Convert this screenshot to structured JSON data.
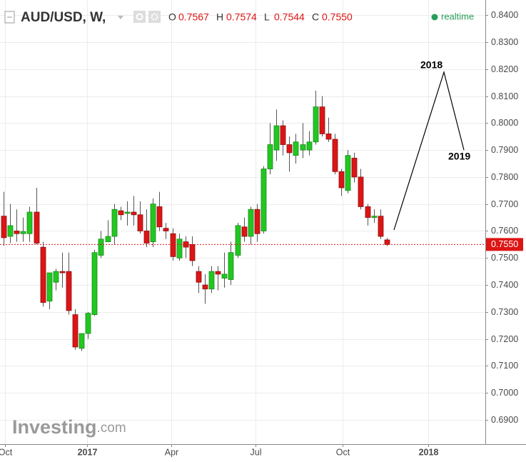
{
  "chart_data": {
    "type": "candlestick",
    "title": "AUD/USD, W,",
    "ohlc_header": [
      {
        "label": "O",
        "value": "0.7567"
      },
      {
        "label": "H",
        "value": "0.7574"
      },
      {
        "label": "L",
        "value": "0.7544"
      },
      {
        "label": "C",
        "value": "0.7550"
      }
    ],
    "status": "realtime",
    "watermark": [
      "Investing",
      ".com"
    ],
    "annotations": [
      "2018",
      "2019"
    ],
    "last_price": {
      "value": 0.755,
      "label": "0.7550"
    },
    "up_color": "#22c722",
    "down_color": "#dd1515",
    "grid": true,
    "x": [
      0,
      1,
      2,
      3,
      4,
      5,
      6,
      7,
      8,
      9,
      10,
      11,
      12,
      13,
      14,
      15,
      16,
      17,
      18,
      19,
      20,
      21,
      22,
      23,
      24,
      25,
      26,
      27,
      28,
      29,
      30,
      31,
      32,
      33,
      34,
      35,
      36,
      37,
      38,
      39,
      40,
      41,
      42,
      43,
      44,
      45,
      46,
      47,
      48,
      49,
      50,
      51,
      52,
      53,
      54,
      55,
      56,
      57,
      58,
      59
    ],
    "open": [
      0.7655,
      0.758,
      0.76,
      0.759,
      0.759,
      0.767,
      0.754,
      0.734,
      0.741,
      0.745,
      0.745,
      0.729,
      0.7165,
      0.722,
      0.729,
      0.751,
      0.756,
      0.758,
      0.7675,
      0.7665,
      0.767,
      0.766,
      0.76,
      0.756,
      0.769,
      0.761,
      0.759,
      0.75,
      0.756,
      0.755,
      0.745,
      0.74,
      0.7385,
      0.745,
      0.7425,
      0.742,
      0.751,
      0.7615,
      0.758,
      0.768,
      0.76,
      0.783,
      0.79,
      0.799,
      0.792,
      0.788,
      0.79,
      0.79,
      0.793,
      0.806,
      0.796,
      0.794,
      0.782,
      0.775,
      0.787,
      0.78,
      0.769,
      0.765,
      0.7655,
      0.7567
    ],
    "high": [
      0.7745,
      0.77,
      0.768,
      0.765,
      0.769,
      0.776,
      0.756,
      0.744,
      0.746,
      0.752,
      0.752,
      0.731,
      0.722,
      0.73,
      0.753,
      0.76,
      0.764,
      0.77,
      0.769,
      0.771,
      0.773,
      0.771,
      0.768,
      0.772,
      0.7745,
      0.763,
      0.761,
      0.759,
      0.758,
      0.758,
      0.747,
      0.744,
      0.747,
      0.747,
      0.752,
      0.756,
      0.763,
      0.765,
      0.769,
      0.77,
      0.784,
      0.8,
      0.805,
      0.801,
      0.795,
      0.796,
      0.8,
      0.797,
      0.812,
      0.81,
      0.802,
      0.796,
      0.783,
      0.79,
      0.789,
      0.783,
      0.77,
      0.768,
      0.768,
      0.7574
    ],
    "low": [
      0.7545,
      0.7555,
      0.756,
      0.756,
      0.756,
      0.755,
      0.732,
      0.731,
      0.738,
      0.739,
      0.729,
      0.716,
      0.7155,
      0.72,
      0.7285,
      0.75,
      0.756,
      0.755,
      0.764,
      0.762,
      0.762,
      0.759,
      0.754,
      0.754,
      0.76,
      0.757,
      0.749,
      0.749,
      0.75,
      0.747,
      0.737,
      0.733,
      0.737,
      0.738,
      0.739,
      0.74,
      0.75,
      0.756,
      0.755,
      0.756,
      0.759,
      0.781,
      0.786,
      0.788,
      0.782,
      0.785,
      0.787,
      0.788,
      0.792,
      0.795,
      0.793,
      0.781,
      0.773,
      0.774,
      0.778,
      0.768,
      0.762,
      0.763,
      0.757,
      0.7544
    ],
    "close": [
      0.7575,
      0.762,
      0.759,
      0.7598,
      0.767,
      0.7555,
      0.7335,
      0.7445,
      0.745,
      0.7445,
      0.7305,
      0.717,
      0.722,
      0.7295,
      0.752,
      0.757,
      0.758,
      0.768,
      0.766,
      0.767,
      0.766,
      0.76,
      0.7555,
      0.77,
      0.7615,
      0.76,
      0.7505,
      0.757,
      0.754,
      0.749,
      0.741,
      0.7385,
      0.745,
      0.744,
      0.744,
      0.752,
      0.762,
      0.758,
      0.768,
      0.759,
      0.783,
      0.792,
      0.799,
      0.792,
      0.789,
      0.793,
      0.792,
      0.793,
      0.806,
      0.796,
      0.794,
      0.782,
      0.776,
      0.788,
      0.78,
      0.769,
      0.765,
      0.7655,
      0.758,
      0.755
    ],
    "xlim": [
      -0.55,
      74.18
    ],
    "xticks": [
      {
        "value": 0.22,
        "label": "Oct"
      },
      {
        "value": 12.86,
        "label": "2017"
      },
      {
        "value": 25.82,
        "label": "Apr"
      },
      {
        "value": 38.79,
        "label": "Jul"
      },
      {
        "value": 52.2,
        "label": "Oct"
      },
      {
        "value": 65.38,
        "label": "2018"
      }
    ],
    "ylim": [
      0.681,
      0.8456
    ],
    "yticks": [
      {
        "value": 0.69,
        "label": "0.6900"
      },
      {
        "value": 0.7,
        "label": "0.7000"
      },
      {
        "value": 0.71,
        "label": "0.7100"
      },
      {
        "value": 0.72,
        "label": "0.7200"
      },
      {
        "value": 0.73,
        "label": "0.7300"
      },
      {
        "value": 0.74,
        "label": "0.7400"
      },
      {
        "value": 0.75,
        "label": "0.7500"
      },
      {
        "value": 0.76,
        "label": "0.7600"
      },
      {
        "value": 0.77,
        "label": "0.7700"
      },
      {
        "value": 0.78,
        "label": "0.7800"
      },
      {
        "value": 0.79,
        "label": "0.7900"
      },
      {
        "value": 0.8,
        "label": "0.8000"
      },
      {
        "value": 0.81,
        "label": "0.8100"
      },
      {
        "value": 0.82,
        "label": "0.8200"
      },
      {
        "value": 0.83,
        "label": "0.8300"
      },
      {
        "value": 0.84,
        "label": "0.8400"
      }
    ]
  }
}
